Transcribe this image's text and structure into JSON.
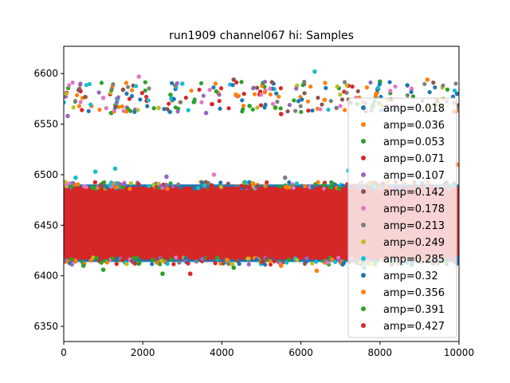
{
  "chart_data": {
    "type": "scatter",
    "title": "run1909 channel067 hi: Samples",
    "xlabel": "",
    "ylabel": "",
    "xlim": [
      0,
      10000
    ],
    "ylim": [
      6335,
      6627
    ],
    "xticks": [
      0,
      2000,
      4000,
      6000,
      8000,
      10000
    ],
    "yticks": [
      6350,
      6400,
      6450,
      6500,
      6550,
      6600
    ],
    "grid": false,
    "legend_position": "right",
    "band": {
      "low": 6416,
      "high": 6488
    },
    "series": [
      {
        "name": "amp=0.018",
        "color": "#1f77b4"
      },
      {
        "name": "amp=0.036",
        "color": "#ff7f0e"
      },
      {
        "name": "amp=0.053",
        "color": "#2ca02c"
      },
      {
        "name": "amp=0.071",
        "color": "#d62728"
      },
      {
        "name": "amp=0.107",
        "color": "#9467bd"
      },
      {
        "name": "amp=0.142",
        "color": "#8c564b"
      },
      {
        "name": "amp=0.178",
        "color": "#e377c2"
      },
      {
        "name": "amp=0.213",
        "color": "#7f7f7f"
      },
      {
        "name": "amp=0.249",
        "color": "#bcbd22"
      },
      {
        "name": "amp=0.285",
        "color": "#17becf"
      },
      {
        "name": "amp=0.32",
        "color": "#1f77b4"
      },
      {
        "name": "amp=0.356",
        "color": "#ff7f0e"
      },
      {
        "name": "amp=0.391",
        "color": "#2ca02c"
      },
      {
        "name": "amp=0.427",
        "color": "#d62728"
      }
    ],
    "scatter_points": [
      {
        "x": 100,
        "y": 6558,
        "s": 4
      },
      {
        "x": 400,
        "y": 6585,
        "s": 7
      },
      {
        "x": 700,
        "y": 6568,
        "s": 1
      },
      {
        "x": 1000,
        "y": 6576,
        "s": 6
      },
      {
        "x": 1200,
        "y": 6561,
        "s": 2
      },
      {
        "x": 1500,
        "y": 6584,
        "s": 5
      },
      {
        "x": 1900,
        "y": 6597,
        "s": 6
      },
      {
        "x": 2100,
        "y": 6573,
        "s": 3
      },
      {
        "x": 2400,
        "y": 6566,
        "s": 8
      },
      {
        "x": 2700,
        "y": 6579,
        "s": 2
      },
      {
        "x": 3000,
        "y": 6590,
        "s": 9
      },
      {
        "x": 3300,
        "y": 6572,
        "s": 7
      },
      {
        "x": 3600,
        "y": 6561,
        "s": 4
      },
      {
        "x": 3900,
        "y": 6581,
        "s": 1
      },
      {
        "x": 4300,
        "y": 6594,
        "s": 5
      },
      {
        "x": 4700,
        "y": 6568,
        "s": 2
      },
      {
        "x": 5100,
        "y": 6583,
        "s": 6
      },
      {
        "x": 5500,
        "y": 6560,
        "s": 3
      },
      {
        "x": 5900,
        "y": 6588,
        "s": 8
      },
      {
        "x": 6350,
        "y": 6602,
        "s": 9
      },
      {
        "x": 6600,
        "y": 6574,
        "s": 1
      },
      {
        "x": 6900,
        "y": 6566,
        "s": 7
      },
      {
        "x": 7200,
        "y": 6588,
        "s": 3
      },
      {
        "x": 7600,
        "y": 6571,
        "s": 5
      },
      {
        "x": 8000,
        "y": 6592,
        "s": 2
      },
      {
        "x": 8400,
        "y": 6568,
        "s": 4
      },
      {
        "x": 8800,
        "y": 6585,
        "s": 6
      },
      {
        "x": 9200,
        "y": 6594,
        "s": 1
      },
      {
        "x": 9600,
        "y": 6575,
        "s": 8
      },
      {
        "x": 9950,
        "y": 6580,
        "s": 0
      },
      {
        "x": 300,
        "y": 6497,
        "s": 9
      },
      {
        "x": 800,
        "y": 6503,
        "s": 9
      },
      {
        "x": 1300,
        "y": 6506,
        "s": 9
      },
      {
        "x": 2600,
        "y": 6498,
        "s": 4
      },
      {
        "x": 3800,
        "y": 6500,
        "s": 6
      },
      {
        "x": 5600,
        "y": 6497,
        "s": 7
      },
      {
        "x": 7200,
        "y": 6504,
        "s": 9
      },
      {
        "x": 9000,
        "y": 6499,
        "s": 5
      },
      {
        "x": 9950,
        "y": 6510,
        "s": 1
      },
      {
        "x": 500,
        "y": 6410,
        "s": 2
      },
      {
        "x": 1000,
        "y": 6406,
        "s": 2
      },
      {
        "x": 1900,
        "y": 6412,
        "s": 2
      },
      {
        "x": 2500,
        "y": 6402,
        "s": 2
      },
      {
        "x": 3200,
        "y": 6402,
        "s": 3
      },
      {
        "x": 4300,
        "y": 6408,
        "s": 2
      },
      {
        "x": 5500,
        "y": 6410,
        "s": 1
      },
      {
        "x": 6400,
        "y": 6405,
        "s": 1
      },
      {
        "x": 7600,
        "y": 6408,
        "s": 2
      },
      {
        "x": 8800,
        "y": 6411,
        "s": 0
      }
    ]
  }
}
